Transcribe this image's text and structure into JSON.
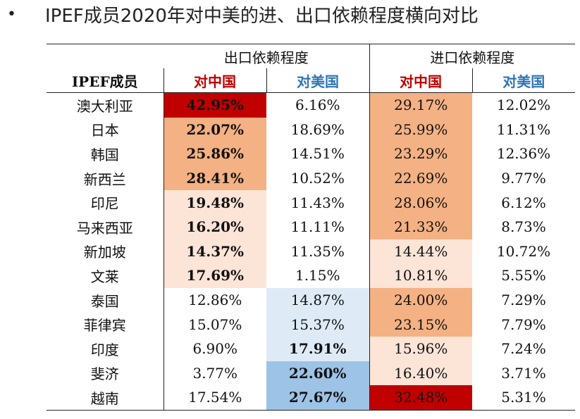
{
  "title": "IPEF成员2020年对中美的进、出口依赖程度横向对比",
  "table": {
    "group_headers": [
      "出口依赖程度",
      "进口依赖程度"
    ],
    "member_header": "IPEF成员",
    "sub_headers": [
      "对中国",
      "对美国",
      "对中国",
      "对美国"
    ],
    "rows": [
      {
        "name": "澳大利亚",
        "export_china": "42.95%",
        "export_us": "6.16%",
        "import_china": "29.17%",
        "import_us": "12.02%"
      },
      {
        "name": "日本",
        "export_china": "22.07%",
        "export_us": "18.69%",
        "import_china": "25.99%",
        "import_us": "11.31%"
      },
      {
        "name": "韩国",
        "export_china": "25.86%",
        "export_us": "14.51%",
        "import_china": "23.29%",
        "import_us": "12.36%"
      },
      {
        "name": "新西兰",
        "export_china": "28.41%",
        "export_us": "10.52%",
        "import_china": "22.69%",
        "import_us": "9.77%"
      },
      {
        "name": "印尼",
        "export_china": "19.48%",
        "export_us": "11.43%",
        "import_china": "28.06%",
        "import_us": "6.12%"
      },
      {
        "name": "马来西亚",
        "export_china": "16.20%",
        "export_us": "11.11%",
        "import_china": "21.33%",
        "import_us": "8.73%"
      },
      {
        "name": "新加坡",
        "export_china": "14.37%",
        "export_us": "11.35%",
        "import_china": "14.44%",
        "import_us": "10.72%"
      },
      {
        "name": "文莱",
        "export_china": "17.69%",
        "export_us": "1.15%",
        "import_china": "10.81%",
        "import_us": "5.55%"
      },
      {
        "name": "泰国",
        "export_china": "12.86%",
        "export_us": "14.87%",
        "import_china": "24.00%",
        "import_us": "7.29%"
      },
      {
        "name": "菲律宾",
        "export_china": "15.07%",
        "export_us": "15.37%",
        "import_china": "23.15%",
        "import_us": "7.79%"
      },
      {
        "name": "印度",
        "export_china": "6.90%",
        "export_us": "17.91%",
        "import_china": "15.96%",
        "import_us": "7.24%"
      },
      {
        "name": "斐济",
        "export_china": "3.77%",
        "export_us": "22.60%",
        "import_china": "16.40%",
        "import_us": "3.71%"
      },
      {
        "name": "越南",
        "export_china": "17.54%",
        "export_us": "27.67%",
        "import_china": "32.48%",
        "import_us": "5.31%"
      }
    ]
  },
  "colors": {
    "dark_red": "#c00000",
    "orange": "#f4b183",
    "peach": "#fce4d6",
    "light_blue": "#deebf7",
    "mid_blue": "#9dc3e6",
    "header_red": "#c00000",
    "header_blue": "#2e75b6"
  },
  "cell_styles": {
    "export_china": [
      {
        "bg": "dark_red",
        "bold": true
      },
      {
        "bg": "orange",
        "bold": true
      },
      {
        "bg": "orange",
        "bold": true
      },
      {
        "bg": "orange",
        "bold": true
      },
      {
        "bg": "peach",
        "bold": true
      },
      {
        "bg": "peach",
        "bold": true
      },
      {
        "bg": "peach",
        "bold": true
      },
      {
        "bg": "peach",
        "bold": true
      },
      {
        "bg": "",
        "bold": false
      },
      {
        "bg": "",
        "bold": false
      },
      {
        "bg": "",
        "bold": false
      },
      {
        "bg": "",
        "bold": false
      },
      {
        "bg": "",
        "bold": false
      }
    ],
    "export_us": [
      {
        "bg": "",
        "bold": false
      },
      {
        "bg": "",
        "bold": false
      },
      {
        "bg": "",
        "bold": false
      },
      {
        "bg": "",
        "bold": false
      },
      {
        "bg": "",
        "bold": false
      },
      {
        "bg": "",
        "bold": false
      },
      {
        "bg": "",
        "bold": false
      },
      {
        "bg": "",
        "bold": false
      },
      {
        "bg": "light_blue",
        "bold": false
      },
      {
        "bg": "light_blue",
        "bold": false
      },
      {
        "bg": "light_blue",
        "bold": true
      },
      {
        "bg": "mid_blue",
        "bold": true
      },
      {
        "bg": "mid_blue",
        "bold": true
      }
    ],
    "import_china": [
      {
        "bg": "orange",
        "bold": false
      },
      {
        "bg": "orange",
        "bold": false
      },
      {
        "bg": "orange",
        "bold": false
      },
      {
        "bg": "orange",
        "bold": false
      },
      {
        "bg": "orange",
        "bold": false
      },
      {
        "bg": "orange",
        "bold": false
      },
      {
        "bg": "peach",
        "bold": false
      },
      {
        "bg": "peach",
        "bold": false
      },
      {
        "bg": "orange",
        "bold": false
      },
      {
        "bg": "orange",
        "bold": false
      },
      {
        "bg": "peach",
        "bold": false
      },
      {
        "bg": "peach",
        "bold": false
      },
      {
        "bg": "dark_red",
        "bold": false
      }
    ],
    "import_us": [
      {
        "bg": "",
        "bold": false
      },
      {
        "bg": "",
        "bold": false
      },
      {
        "bg": "",
        "bold": false
      },
      {
        "bg": "",
        "bold": false
      },
      {
        "bg": "",
        "bold": false
      },
      {
        "bg": "",
        "bold": false
      },
      {
        "bg": "",
        "bold": false
      },
      {
        "bg": "",
        "bold": false
      },
      {
        "bg": "",
        "bold": false
      },
      {
        "bg": "",
        "bold": false
      },
      {
        "bg": "",
        "bold": false
      },
      {
        "bg": "",
        "bold": false
      },
      {
        "bg": "",
        "bold": false
      }
    ]
  }
}
